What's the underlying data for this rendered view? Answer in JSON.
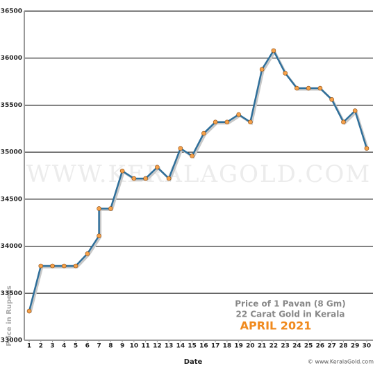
{
  "chart_data": {
    "type": "line",
    "x": [
      1,
      2,
      3,
      4,
      5,
      6,
      7,
      7,
      8,
      9,
      10,
      11,
      12,
      13,
      14,
      15,
      16,
      17,
      18,
      19,
      20,
      21,
      22,
      23,
      24,
      25,
      26,
      27,
      28,
      29,
      30
    ],
    "series": [
      {
        "name": "Price",
        "color": "#2f6f9a",
        "marker_color": "#f5a14a",
        "values": [
          33310,
          33790,
          33790,
          33790,
          33790,
          33920,
          34110,
          34400,
          34400,
          34800,
          34720,
          34720,
          34840,
          34720,
          35040,
          34960,
          35200,
          35320,
          35320,
          35400,
          35320,
          35880,
          36080,
          35840,
          35680,
          35680,
          35680,
          35560,
          35320,
          35440,
          35040
        ]
      }
    ],
    "xlim": [
      0.58,
      30.54
    ],
    "xticks": [
      1,
      2,
      3,
      4,
      5,
      6,
      7,
      8,
      9,
      10,
      11,
      12,
      13,
      14,
      15,
      16,
      17,
      18,
      19,
      20,
      21,
      22,
      23,
      24,
      25,
      26,
      27,
      28,
      29,
      30
    ],
    "ylim": [
      33000,
      36500
    ],
    "yticks": [
      33000,
      33500,
      34000,
      34500,
      35000,
      35500,
      36000,
      36500
    ],
    "grid": true,
    "x_label": "Date",
    "y_label": "Price in Rupees",
    "annotations": [
      "Price of 1 Pavan (8 Gm)",
      "22 Carat Gold in Kerala",
      "APRIL 2021"
    ],
    "watermark": "WWW.KERALAGOLD.COM",
    "copyright": "© www.KeralaGold.com"
  }
}
